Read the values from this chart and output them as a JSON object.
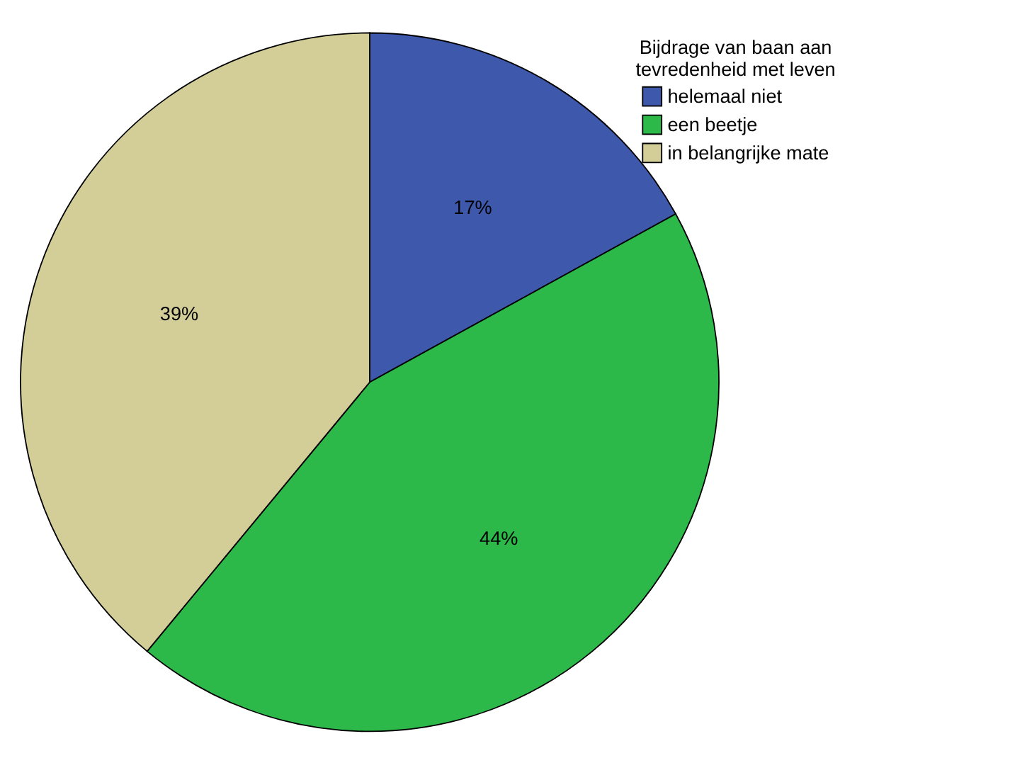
{
  "chart_data": {
    "type": "pie",
    "legend_title": "Bijdrage van baan aan tevredenheid met leven",
    "legend": "top right",
    "categories": [
      "helemaal niet",
      "een beetje",
      "in belangrijke mate"
    ],
    "values": [
      17,
      44,
      39
    ],
    "colors": [
      "#3e58ac",
      "#2db84a",
      "#d3ce97"
    ],
    "value_labels": [
      "17%",
      "44%",
      "39%"
    ]
  }
}
